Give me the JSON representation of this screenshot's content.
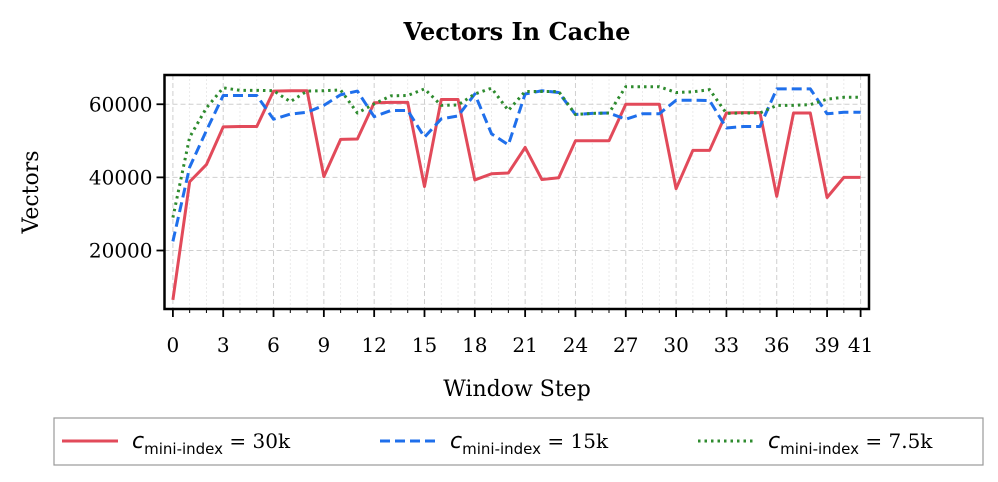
{
  "chart_data": {
    "type": "line",
    "title": "Vectors In Cache",
    "xlabel": "Window Step",
    "ylabel": "Vectors",
    "xlim": [
      -0.5,
      41.5
    ],
    "ylim": [
      4000,
      68000
    ],
    "xticks": [
      0,
      3,
      6,
      9,
      12,
      15,
      18,
      21,
      24,
      27,
      30,
      33,
      36,
      39,
      41
    ],
    "xtick_labels": [
      "0",
      "3",
      "6",
      "9",
      "12",
      "15",
      "18",
      "21",
      "24",
      "27",
      "30",
      "33",
      "36",
      "39",
      "41"
    ],
    "yticks": [
      20000,
      40000,
      60000
    ],
    "ytick_labels": [
      "20000",
      "40000",
      "60000"
    ],
    "grid": true,
    "legend_position": "bottom",
    "x": [
      0,
      1,
      2,
      3,
      4,
      5,
      6,
      7,
      8,
      9,
      10,
      11,
      12,
      13,
      14,
      15,
      16,
      17,
      18,
      19,
      20,
      21,
      22,
      23,
      24,
      25,
      26,
      27,
      28,
      29,
      30,
      31,
      32,
      33,
      34,
      35,
      36,
      37,
      38,
      39,
      40,
      41
    ],
    "series": [
      {
        "name": "30k",
        "color": "#e24a5a",
        "style": "solid",
        "values": [
          6500,
          38800,
          43500,
          53800,
          53900,
          53900,
          63600,
          63700,
          63700,
          40200,
          50400,
          50500,
          60400,
          60500,
          60500,
          37500,
          61300,
          61300,
          39300,
          41000,
          41200,
          48200,
          39400,
          39900,
          50000,
          50000,
          50000,
          60000,
          60000,
          60000,
          36900,
          47400,
          47400,
          57600,
          57700,
          57700,
          34800,
          57600,
          57600,
          34500,
          40000,
          40000
        ]
      },
      {
        "name": "15k",
        "color": "#1f6feb",
        "style": "dashed",
        "values": [
          22500,
          42800,
          52800,
          62400,
          62400,
          62400,
          55900,
          57300,
          57800,
          59700,
          62600,
          63600,
          56600,
          58300,
          58300,
          51000,
          56000,
          56800,
          62800,
          51900,
          48900,
          62800,
          63700,
          63200,
          57200,
          57500,
          57600,
          55900,
          57400,
          57400,
          61100,
          61100,
          61000,
          53500,
          53900,
          53900,
          64200,
          64200,
          64200,
          57400,
          57800,
          57800
        ]
      },
      {
        "name": "7.5k",
        "color": "#2e8b2e",
        "style": "dotted",
        "values": [
          29000,
          51000,
          59000,
          64500,
          63800,
          63800,
          63700,
          60700,
          63600,
          63700,
          63900,
          57600,
          60100,
          62300,
          62400,
          64200,
          59700,
          59800,
          62800,
          64400,
          58300,
          63500,
          63500,
          63500,
          57200,
          57500,
          57600,
          64800,
          64800,
          64800,
          63200,
          63400,
          64000,
          57500,
          57600,
          57600,
          59700,
          59700,
          59900,
          61400,
          61900,
          61900
        ]
      }
    ]
  },
  "legend_labels": {
    "symbol": "c",
    "subscript": "mini-index",
    "relation": "="
  }
}
